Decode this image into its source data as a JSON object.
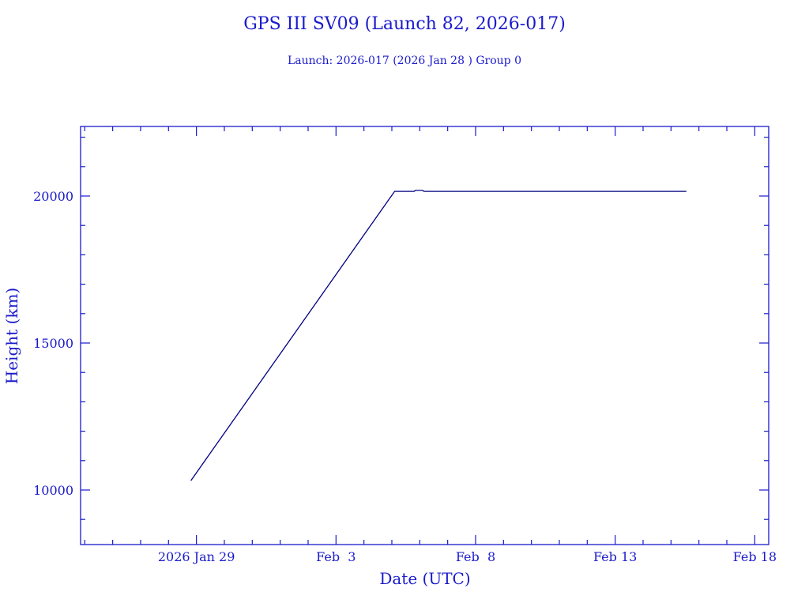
{
  "chart_data": {
    "type": "line",
    "title": "GPS III SV09 (Launch 82, 2026-017)",
    "subtitle": "Launch: 2026-017  (2026 Jan 28 )  Group 0",
    "xlabel": "Date (UTC)",
    "ylabel": "Height (km)",
    "x_units": "days since 2026 Jan 29 00:00 UTC",
    "xlim": [
      -4.15,
      20.5
    ],
    "ylim": [
      8145,
      22366
    ],
    "x_ticks": [
      {
        "value": 0,
        "label": "2026 Jan 29"
      },
      {
        "value": 5,
        "label": "Feb  3"
      },
      {
        "value": 10,
        "label": "Feb  8"
      },
      {
        "value": 15,
        "label": "Feb 13"
      },
      {
        "value": 20,
        "label": "Feb 18"
      }
    ],
    "y_ticks": [
      {
        "value": 10000,
        "label": "10000"
      },
      {
        "value": 15000,
        "label": "15000"
      },
      {
        "value": 20000,
        "label": "20000"
      }
    ],
    "x_minor_step": 1,
    "y_minor_step": 1000,
    "grid": false,
    "series": [
      {
        "name": "Height",
        "x": [
          -0.2,
          7.1,
          7.8,
          7.85,
          8.1,
          8.15,
          17.55
        ],
        "y": [
          10320,
          20160,
          20160,
          20190,
          20190,
          20160,
          20160
        ]
      }
    ],
    "colors": {
      "axis": "#1a1acc",
      "line": "#000080",
      "text": "#1a1acc"
    }
  }
}
